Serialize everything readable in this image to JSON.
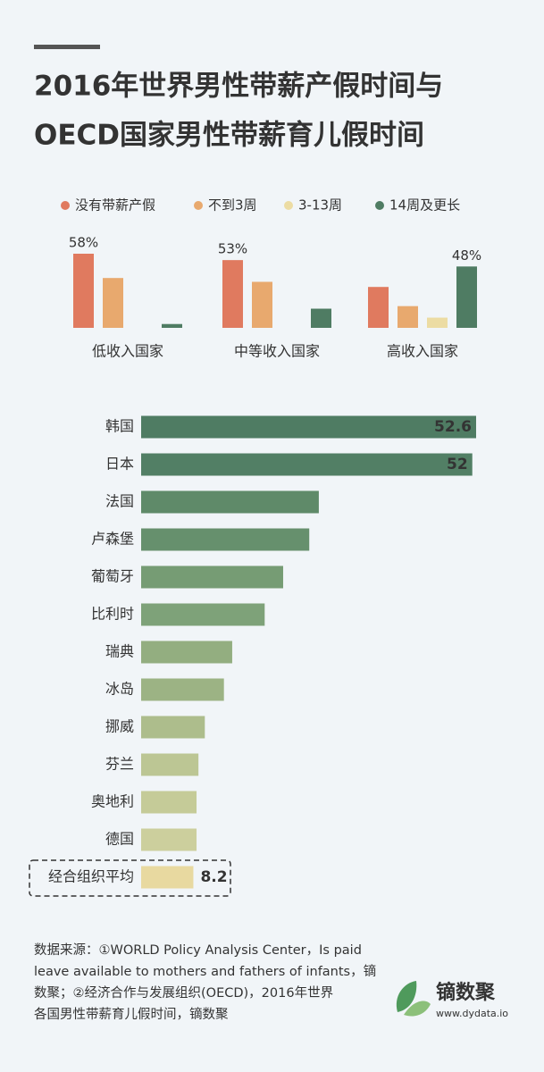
{
  "header": {
    "title_lines": [
      "2016年世界男性带薪产假时间与",
      "OECD国家男性带薪育儿假时间"
    ]
  },
  "chart_data": [
    {
      "type": "bar",
      "categories": [
        "低收入国家",
        "中等收入国家",
        "高收入国家"
      ],
      "series": [
        {
          "name": "没有带薪产假",
          "color": "#e07a5f",
          "values": [
            58,
            53,
            32
          ],
          "value_labels": [
            "58%",
            "53%",
            null
          ]
        },
        {
          "name": "不到3周",
          "color": "#e8a96e",
          "values": [
            39,
            36,
            17
          ]
        },
        {
          "name": "3-13周",
          "color": "#ecdca3",
          "values": [
            0,
            0,
            8
          ]
        },
        {
          "name": "14周及更长",
          "color": "#4f7c63",
          "values": [
            3,
            15,
            48
          ],
          "value_labels": [
            null,
            null,
            "48%"
          ]
        }
      ]
    },
    {
      "type": "barh",
      "categories": [
        "韩国",
        "日本",
        "法国",
        "卢森堡",
        "葡萄牙",
        "比利时",
        "瑞典",
        "冰岛",
        "挪威",
        "芬兰",
        "奥地利",
        "德国",
        "经合组织平均"
      ],
      "values": [
        52.6,
        52,
        27.9,
        26.4,
        22.3,
        19.4,
        14.3,
        13,
        10,
        9,
        8.7,
        8.7,
        8.2
      ],
      "value_labels": [
        "52.6",
        "52",
        null,
        null,
        null,
        null,
        null,
        null,
        null,
        null,
        null,
        null,
        "8.2"
      ],
      "colors": [
        "#4f7c63",
        "#527f65",
        "#5f8a69",
        "#66906d",
        "#769c74",
        "#7ea279",
        "#93ae80",
        "#9cb384",
        "#adbd8c",
        "#bcc694",
        "#c5cb98",
        "#cccf9d",
        "#e8d9a0"
      ]
    }
  ],
  "footer": {
    "source_lines": [
      "数据来源：①WORLD Policy Analysis Center，Is paid",
      "leave available to mothers and fathers of infants，镝",
      "数聚；②经济合作与发展组织(OECD)，2016年世界",
      "各国男性带薪育儿假时间，镝数聚"
    ],
    "brand": "镝数聚",
    "url": "www.dydata.io"
  }
}
